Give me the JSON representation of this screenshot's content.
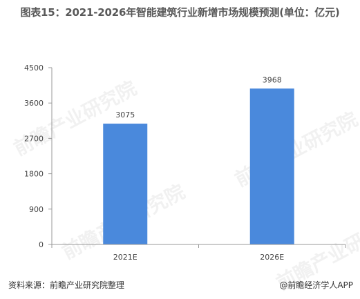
{
  "title": "图表15：2021-2026年智能建筑行业新增市场规模预测(单位：亿元)",
  "source": "资料来源：前瞻产业研究院整理",
  "brand": "@前瞻经济学人APP",
  "watermark": "前瞻产业研究院",
  "colors": {
    "bar": "#4a89dc",
    "axis": "#999999"
  },
  "chart_data": {
    "type": "bar",
    "title": "图表15：2021-2026年智能建筑行业新增市场规模预测(单位：亿元)",
    "xlabel": "",
    "ylabel": "",
    "categories": [
      "2021E",
      "2026E"
    ],
    "values": [
      3075,
      3968
    ],
    "data_labels": [
      "3075",
      "3968"
    ],
    "ylim": [
      0,
      4500
    ],
    "yticks": [
      0,
      900,
      1800,
      2700,
      3600,
      4500
    ],
    "ytick_labels": [
      "0",
      "900",
      "1800",
      "2700",
      "3600",
      "4500"
    ],
    "grid": false,
    "legend": "none"
  }
}
